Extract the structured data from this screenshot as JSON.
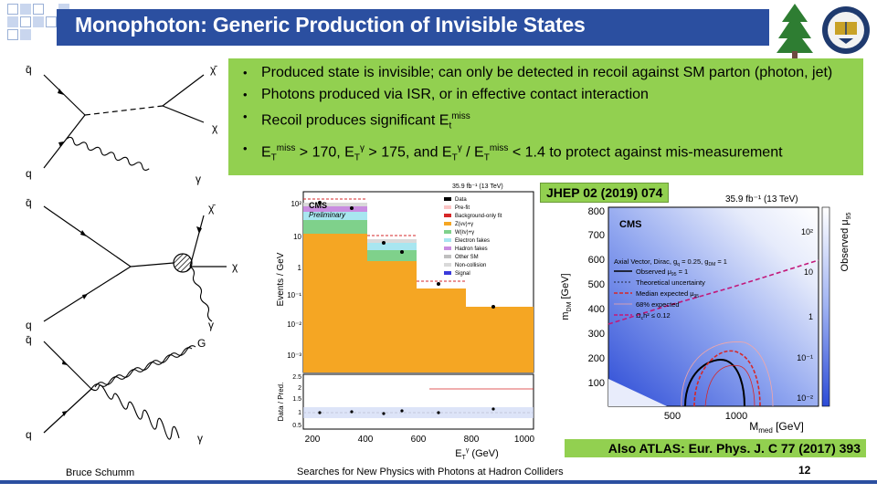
{
  "slide": {
    "title": "Monophoton: Generic Production of Invisible States",
    "bullets": [
      {
        "parts": [
          {
            "t": "Produced state is invisible; can only be detected in recoil against SM parton (photon, jet)"
          }
        ]
      },
      {
        "parts": [
          {
            "t": "Photons produced via ISR, or in effective contact interaction"
          }
        ]
      },
      {
        "parts": [
          {
            "t": "Recoil produces significant E"
          },
          {
            "sub": "t"
          },
          {
            "sup": "miss"
          }
        ]
      },
      {
        "parts": [
          {
            "t": "E"
          },
          {
            "sub": "T"
          },
          {
            "sup": "miss"
          },
          {
            "t": " > 170, E"
          },
          {
            "sub": "T"
          },
          {
            "sup": "γ"
          },
          {
            "t": " > 175, and E"
          },
          {
            "sub": "T"
          },
          {
            "sup": "γ"
          },
          {
            "t": " / E"
          },
          {
            "sub": "T"
          },
          {
            "sup": "miss"
          },
          {
            "t": " < 1.4 to protect against mis-measurement"
          }
        ]
      }
    ],
    "jhep_ref": "JHEP 02 (2019) 074",
    "atlas_ref": "Also ATLAS: Eur. Phys. J. C 77 (2017) 393",
    "footer_author": "Bruce Schumm",
    "footer_title": "Searches for New Physics with Photons at Hadron Colliders",
    "page_number": "12"
  },
  "feynman": {
    "d1": {
      "q_bar": "q̄",
      "q": "q",
      "chi_bar": "χ̄",
      "chi": "χ",
      "gamma": "γ"
    },
    "d2": {
      "q_bar": "q̄",
      "q": "q",
      "chi_bar": "χ̄",
      "chi": "χ",
      "gamma": "γ"
    },
    "d3": {
      "q_bar": "q̄",
      "q": "q",
      "G": "G",
      "gamma": "γ"
    }
  },
  "plot_left": {
    "lumi": "35.9 fb⁻¹ (13 TeV)",
    "cms": "CMS",
    "preliminary": "Preliminary",
    "ylabel": "Events / GeV",
    "ratio_ylabel": "Data / Pred.",
    "xlabel": "E",
    "xlabel_sub": "T",
    "xlabel_sup": "γ",
    "xlabel_unit": " (GeV)",
    "legend": [
      "Data",
      "Pre-fit",
      "Background-only fit",
      "Z(νν)+γ",
      "W(ℓν)+γ",
      "Electron fakes",
      "Hadron fakes",
      "Other SM",
      "Non-collision",
      "Signal"
    ],
    "y_ticks": [
      "10²",
      "10",
      "1",
      "10⁻¹",
      "10⁻²",
      "10⁻³"
    ],
    "ratio_ticks": [
      "2.5",
      "2",
      "1.5",
      "1",
      "0.5"
    ],
    "x_ticks": [
      "200",
      "400",
      "600",
      "800",
      "1000"
    ]
  },
  "plot_right": {
    "lumi": "35.9 fb⁻¹ (13 TeV)",
    "cms": "CMS",
    "ylabel": "m",
    "ylabel_sub": "DM",
    "ylabel_unit": " [GeV]",
    "xlabel": "M",
    "xlabel_sub": "med",
    "xlabel_unit": " [GeV]",
    "zlabel": "Observed μ",
    "zlabel_sub": "95",
    "legend": [
      "Axial Vector, Dirac, g",
      "Observed μ",
      "Theoretical uncertainty",
      "Median expected μ",
      "68% expected",
      "Ω"
    ],
    "legend_tail": [
      ", g",
      " = 1",
      "",
      "",
      "",
      "h² ≤ 0.12"
    ],
    "legend_sub1": [
      "q",
      "95",
      "",
      "95",
      "",
      "c"
    ],
    "legend_eq": [
      " = 0.25",
      " = 1"
    ],
    "legend_sub2": [
      "DM",
      "95"
    ],
    "y_ticks": [
      "800",
      "700",
      "600",
      "500",
      "400",
      "300",
      "200",
      "100"
    ],
    "x_ticks": [
      "500",
      "1000"
    ],
    "z_ticks": [
      "10²",
      "10",
      "1",
      "10⁻¹",
      "10⁻²"
    ]
  }
}
